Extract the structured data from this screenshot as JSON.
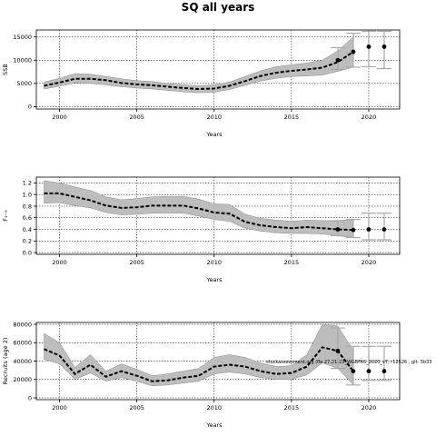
{
  "title": "SQ all years",
  "annotation": "stockassessment.org (fle.27.21-23_WGBFAS_2020_v7, r12526 , git: 5b33",
  "chart_data": [
    {
      "type": "line",
      "title": "",
      "xlabel": "Years",
      "ylabel": "SSB",
      "xlim": [
        1998.5,
        2022
      ],
      "ylim": [
        -500,
        16500
      ],
      "xticks": [
        2000,
        2005,
        2010,
        2015,
        2020
      ],
      "yticks": [
        0,
        5000,
        10000,
        15000
      ],
      "grid": true,
      "x": [
        1999,
        2000,
        2001,
        2002,
        2003,
        2004,
        2005,
        2006,
        2007,
        2008,
        2009,
        2010,
        2011,
        2012,
        2013,
        2014,
        2015,
        2016,
        2017,
        2018,
        2019
      ],
      "values": [
        4500,
        5200,
        6000,
        6000,
        5700,
        5100,
        4800,
        4600,
        4300,
        4000,
        3800,
        3900,
        4500,
        5500,
        6600,
        7300,
        7700,
        8000,
        8400,
        9600,
        11800
      ],
      "lower": [
        3800,
        4400,
        5100,
        5000,
        4700,
        4300,
        4000,
        3800,
        3500,
        3200,
        3000,
        3100,
        3700,
        4600,
        5500,
        6100,
        6500,
        6600,
        6800,
        7600,
        8500
      ],
      "upper": [
        5300,
        6100,
        7100,
        7000,
        6500,
        6000,
        5600,
        5400,
        5000,
        4700,
        4500,
        4700,
        5300,
        6500,
        7700,
        8600,
        9000,
        9400,
        10000,
        12000,
        15000
      ],
      "points": {
        "x": [
          2018,
          2019,
          2020,
          2021
        ],
        "values": [
          10000,
          11800,
          12900,
          12900
        ],
        "lower": [
          8000,
          8500,
          8600,
          8200
        ],
        "upper": [
          12700,
          15800,
          16200,
          16200
        ]
      }
    },
    {
      "type": "line",
      "title": "",
      "xlabel": "Years",
      "ylabel": "F₃₋₅",
      "xlim": [
        1998.5,
        2022
      ],
      "ylim": [
        -0.03,
        1.3
      ],
      "xticks": [
        2000,
        2005,
        2010,
        2015,
        2020
      ],
      "yticks": [
        0.0,
        0.2,
        0.4,
        0.6,
        0.8,
        1.0,
        1.2
      ],
      "grid": true,
      "x": [
        1999,
        2000,
        2001,
        2002,
        2003,
        2004,
        2005,
        2006,
        2007,
        2008,
        2009,
        2010,
        2011,
        2012,
        2013,
        2014,
        2015,
        2016,
        2017,
        2018,
        2019
      ],
      "values": [
        1.02,
        1.02,
        0.96,
        0.9,
        0.81,
        0.77,
        0.78,
        0.81,
        0.81,
        0.81,
        0.76,
        0.69,
        0.67,
        0.53,
        0.47,
        0.44,
        0.42,
        0.44,
        0.42,
        0.4,
        0.39
      ],
      "lower": [
        0.85,
        0.86,
        0.81,
        0.77,
        0.69,
        0.65,
        0.66,
        0.68,
        0.68,
        0.68,
        0.63,
        0.57,
        0.54,
        0.42,
        0.37,
        0.34,
        0.33,
        0.33,
        0.32,
        0.29,
        0.26
      ],
      "upper": [
        1.24,
        1.2,
        1.13,
        1.07,
        0.96,
        0.91,
        0.93,
        0.96,
        0.97,
        0.97,
        0.92,
        0.84,
        0.83,
        0.66,
        0.59,
        0.56,
        0.54,
        0.56,
        0.55,
        0.55,
        0.57
      ],
      "points": {
        "x": [
          2018,
          2019,
          2020,
          2021
        ],
        "values": [
          0.4,
          0.39,
          0.4,
          0.4
        ],
        "lower": [
          0.29,
          0.26,
          0.22,
          0.22
        ],
        "upper": [
          0.55,
          0.57,
          0.68,
          0.68
        ]
      }
    },
    {
      "type": "line",
      "title": "",
      "xlabel": "Years",
      "ylabel": "Recruits (age 2)",
      "xlim": [
        1998.5,
        2022
      ],
      "ylim": [
        -2000,
        82000
      ],
      "xticks": [
        2000,
        2005,
        2010,
        2015,
        2020
      ],
      "yticks": [
        0,
        20000,
        40000,
        60000,
        80000
      ],
      "grid": true,
      "x": [
        1999,
        2000,
        2001,
        2002,
        2003,
        2004,
        2005,
        2006,
        2007,
        2008,
        2009,
        2010,
        2011,
        2012,
        2013,
        2014,
        2015,
        2016,
        2017,
        2018,
        2019
      ],
      "values": [
        53000,
        46000,
        26000,
        36000,
        23000,
        29000,
        24000,
        18000,
        19000,
        22000,
        24000,
        34000,
        36000,
        34000,
        29000,
        26000,
        27000,
        34000,
        55000,
        51000,
        29000
      ],
      "lower": [
        42000,
        37000,
        20000,
        27000,
        18000,
        22000,
        18000,
        13000,
        14000,
        16000,
        18000,
        26000,
        28000,
        26000,
        22000,
        20000,
        20000,
        25000,
        38000,
        32000,
        14000
      ],
      "upper": [
        70000,
        60000,
        33000,
        47000,
        29000,
        37000,
        31000,
        24000,
        26000,
        29000,
        32000,
        44000,
        47000,
        44000,
        38000,
        34000,
        35000,
        47000,
        80000,
        78000,
        52000
      ],
      "points": {
        "x": [
          2018,
          2019,
          2020,
          2021
        ],
        "values": [
          51000,
          29000,
          29000,
          29000
        ],
        "lower": [
          32000,
          14000,
          19000,
          19000
        ],
        "upper": [
          76000,
          56000,
          56000,
          56000
        ]
      }
    }
  ]
}
